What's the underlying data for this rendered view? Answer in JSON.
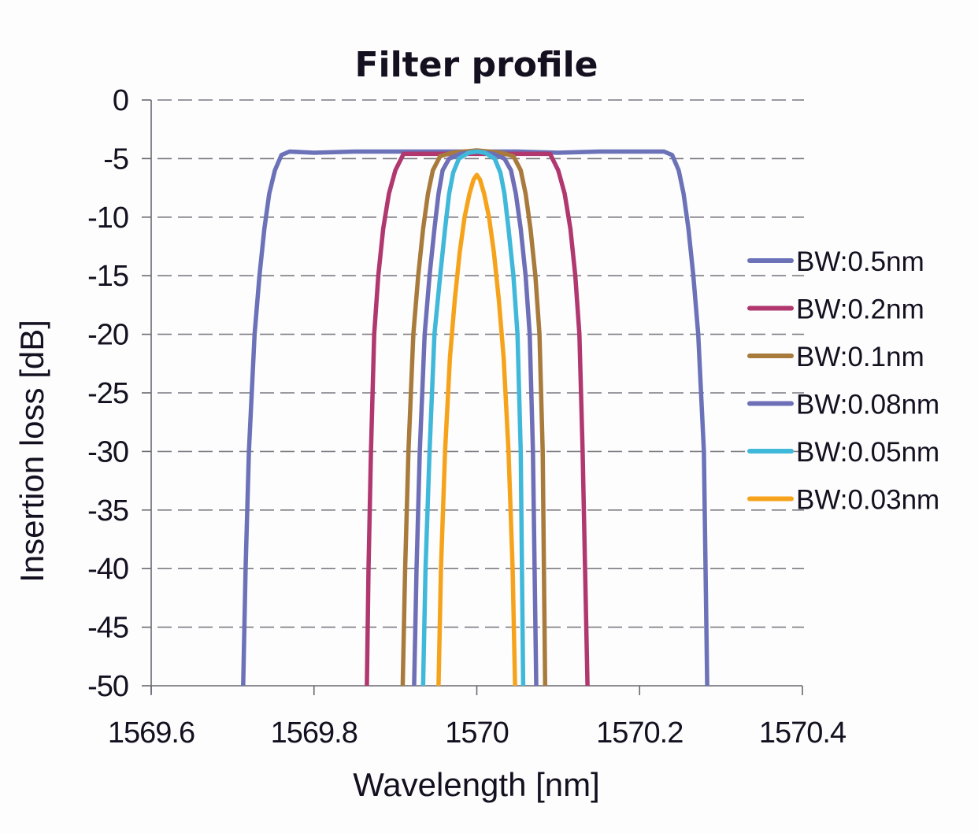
{
  "chart_data": {
    "type": "line",
    "title": "Filter profile",
    "xlabel": "Wavelength [nm]",
    "ylabel": "Insertion loss [dB]",
    "xlim": [
      1569.6,
      1570.4
    ],
    "ylim": [
      -50,
      0
    ],
    "xticks": [
      1569.6,
      1569.8,
      1570,
      1570.2,
      1570.4
    ],
    "xtick_labels": [
      "1569.6",
      "1569.8",
      "1570",
      "1570.2",
      "1570.4"
    ],
    "yticks": [
      0,
      -5,
      -10,
      -15,
      -20,
      -25,
      -30,
      -35,
      -40,
      -45,
      -50
    ],
    "ytick_labels": [
      "0",
      "-5",
      "-10",
      "-15",
      "-20",
      "-25",
      "-30",
      "-35",
      "-40",
      "-45",
      "-50"
    ],
    "grid": "horizontal dashed",
    "legend_position": "right",
    "series": [
      {
        "name": "BW:0.5nm",
        "color": "#6b72b8",
        "x": [
          1569.713,
          1569.716,
          1569.72,
          1569.727,
          1569.733,
          1569.739,
          1569.745,
          1569.752,
          1569.76,
          1569.77,
          1569.8,
          1569.85,
          1569.9,
          1569.95,
          1570.0,
          1570.05,
          1570.1,
          1570.15,
          1570.2,
          1570.23,
          1570.24,
          1570.248,
          1570.254,
          1570.26,
          1570.266,
          1570.272,
          1570.279,
          1570.283
        ],
        "y": [
          -50,
          -40,
          -30,
          -20,
          -15,
          -11,
          -8,
          -6,
          -4.7,
          -4.4,
          -4.5,
          -4.4,
          -4.4,
          -4.4,
          -4.4,
          -4.4,
          -4.5,
          -4.4,
          -4.4,
          -4.4,
          -4.7,
          -6,
          -8,
          -11,
          -15,
          -20,
          -30,
          -50
        ]
      },
      {
        "name": "BW:0.2nm",
        "color": "#b0386f",
        "x": [
          1569.865,
          1569.867,
          1569.87,
          1569.874,
          1569.879,
          1569.885,
          1569.892,
          1569.9,
          1569.91,
          1569.95,
          1570.0,
          1570.05,
          1570.09,
          1570.1,
          1570.108,
          1570.115,
          1570.121,
          1570.126,
          1570.13,
          1570.133,
          1570.136
        ],
        "y": [
          -50,
          -40,
          -30,
          -20,
          -15,
          -11,
          -8,
          -6,
          -4.6,
          -4.6,
          -4.6,
          -4.6,
          -4.6,
          -6,
          -8,
          -11,
          -15,
          -20,
          -30,
          -40,
          -50
        ]
      },
      {
        "name": "BW:0.1nm",
        "color": "#a87b3c",
        "x": [
          1569.909,
          1569.912,
          1569.916,
          1569.922,
          1569.928,
          1569.934,
          1569.94,
          1569.946,
          1569.955,
          1569.97,
          1570.0,
          1570.03,
          1570.045,
          1570.054,
          1570.06,
          1570.066,
          1570.072,
          1570.077,
          1570.081,
          1570.084
        ],
        "y": [
          -50,
          -40,
          -30,
          -20,
          -15,
          -11,
          -8,
          -6,
          -4.8,
          -4.5,
          -4.3,
          -4.5,
          -4.8,
          -6,
          -8,
          -11,
          -15,
          -20,
          -30,
          -50
        ]
      },
      {
        "name": "BW:0.08nm",
        "color": "#6e6fb6",
        "x": [
          1569.923,
          1569.926,
          1569.93,
          1569.936,
          1569.942,
          1569.948,
          1569.953,
          1569.958,
          1569.966,
          1569.98,
          1570.0,
          1570.02,
          1570.034,
          1570.042,
          1570.048,
          1570.054,
          1570.06,
          1570.065,
          1570.069,
          1570.073
        ],
        "y": [
          -50,
          -40,
          -30,
          -20,
          -15,
          -11,
          -8,
          -6,
          -5,
          -4.6,
          -4.4,
          -4.6,
          -5,
          -6,
          -8,
          -11,
          -15,
          -20,
          -30,
          -50
        ]
      },
      {
        "name": "BW:0.05nm",
        "color": "#40b8da",
        "x": [
          1569.934,
          1569.937,
          1569.942,
          1569.948,
          1569.955,
          1569.961,
          1569.966,
          1569.971,
          1569.978,
          1569.99,
          1570.0,
          1570.01,
          1570.022,
          1570.029,
          1570.034,
          1570.039,
          1570.045,
          1570.05,
          1570.054,
          1570.057
        ],
        "y": [
          -50,
          -40,
          -30,
          -20,
          -15,
          -11,
          -8,
          -6.2,
          -5,
          -4.5,
          -4.4,
          -4.5,
          -5,
          -6.2,
          -8,
          -11,
          -15,
          -20,
          -30,
          -50
        ]
      },
      {
        "name": "BW:0.03nm",
        "color": "#f6a31c",
        "x": [
          1569.953,
          1569.956,
          1569.961,
          1569.967,
          1569.973,
          1569.979,
          1569.985,
          1569.991,
          1569.996,
          1570.0,
          1570.004,
          1570.009,
          1570.015,
          1570.021,
          1570.027,
          1570.033,
          1570.039,
          1570.044,
          1570.047
        ],
        "y": [
          -50,
          -40,
          -30,
          -22,
          -17,
          -13,
          -10,
          -8,
          -6.8,
          -6.4,
          -6.8,
          -8,
          -10,
          -13,
          -17,
          -22,
          -30,
          -40,
          -50
        ]
      }
    ]
  }
}
